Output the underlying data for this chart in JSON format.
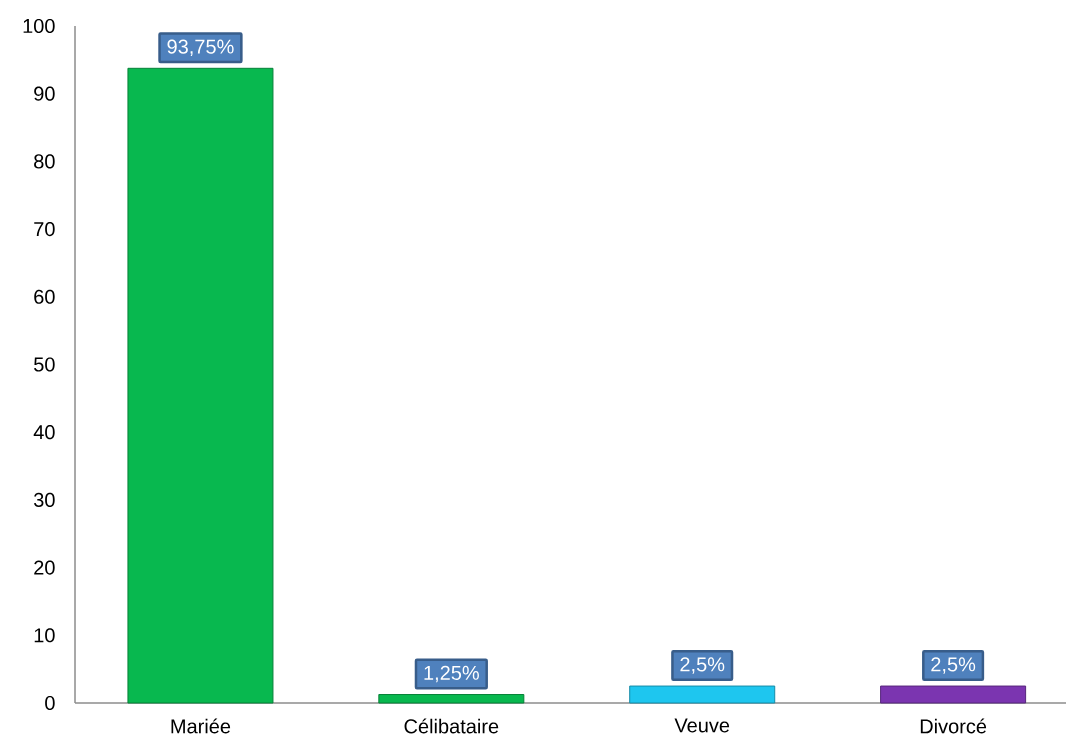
{
  "chart_data": {
    "type": "bar",
    "categories": [
      "Mariée",
      "Célibataire",
      "Veuve",
      "Divorcé"
    ],
    "values": [
      93.75,
      1.25,
      2.5,
      2.5
    ],
    "colors": [
      "#08b84f",
      "#08b84f",
      "#1ec6ef",
      "#7b35b0"
    ],
    "value_labels": [
      "93,75%",
      "1,25%",
      "2,5%",
      "2,5%"
    ],
    "ylim": [
      0,
      100
    ],
    "yticks": [
      0,
      10,
      20,
      30,
      40,
      50,
      60,
      70,
      80,
      90,
      100
    ]
  }
}
